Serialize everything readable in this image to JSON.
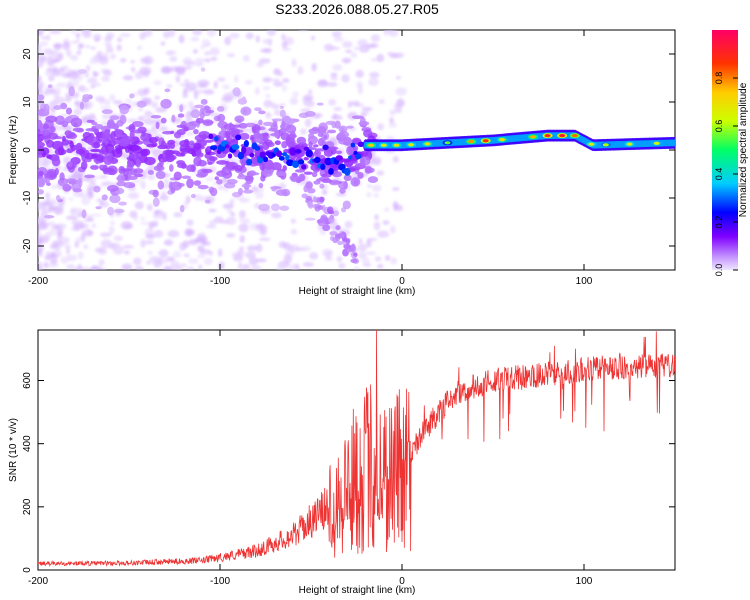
{
  "figure": {
    "title": "S233.2026.088.05.27.R05"
  },
  "chart_data": [
    {
      "type": "heatmap",
      "xlabel": "Height of straight line (km)",
      "ylabel": "Frequency (Hz)",
      "xlim": [
        -200,
        150
      ],
      "ylim": [
        -25,
        25
      ],
      "xticks": [
        -200,
        -100,
        0,
        100
      ],
      "yticks": [
        -20,
        -10,
        0,
        10,
        20
      ],
      "colorbar": {
        "label": "Normalized spectral amplitude",
        "range": [
          0,
          1
        ],
        "ticks": [
          0.0,
          0.2,
          0.4,
          0.6,
          0.8
        ],
        "tick_labels": [
          "0.0",
          "0.2",
          "0.4",
          "0.6",
          "0.8"
        ]
      },
      "description_points": {
        "ridge_frequency_hz": [
          {
            "x": -100,
            "y": 0
          },
          {
            "x": -60,
            "y": -1
          },
          {
            "x": -30,
            "y": -3
          },
          {
            "x": -20,
            "y": 1
          },
          {
            "x": 0,
            "y": 1
          },
          {
            "x": 50,
            "y": 2
          },
          {
            "x": 80,
            "y": 3
          },
          {
            "x": 95,
            "y": 3
          },
          {
            "x": 105,
            "y": 1
          },
          {
            "x": 150,
            "y": 1.5
          }
        ]
      }
    },
    {
      "type": "line",
      "xlabel": "Height of straight line (km)",
      "ylabel": "SNR (10 * v/v)",
      "xlim": [
        -200,
        150
      ],
      "ylim": [
        0,
        760
      ],
      "xticks": [
        -200,
        -100,
        0,
        100
      ],
      "yticks": [
        0,
        200,
        400,
        600
      ],
      "series": [
        {
          "name": "SNR",
          "color": "#ee3333",
          "envelope": [
            {
              "x": -200,
              "y": 20
            },
            {
              "x": -150,
              "y": 22
            },
            {
              "x": -110,
              "y": 30
            },
            {
              "x": -80,
              "y": 60
            },
            {
              "x": -60,
              "y": 110
            },
            {
              "x": -45,
              "y": 180
            },
            {
              "x": -30,
              "y": 260
            },
            {
              "x": -18,
              "y": 330
            },
            {
              "x": -10,
              "y": 300
            },
            {
              "x": 0,
              "y": 330
            },
            {
              "x": 10,
              "y": 420
            },
            {
              "x": 20,
              "y": 500
            },
            {
              "x": 30,
              "y": 560
            },
            {
              "x": 50,
              "y": 600
            },
            {
              "x": 80,
              "y": 620
            },
            {
              "x": 110,
              "y": 640
            },
            {
              "x": 150,
              "y": 650
            }
          ],
          "peak": {
            "x": -14,
            "y": 760
          }
        }
      ]
    }
  ],
  "colors": {
    "snr_line": "#ee3333",
    "colormap": [
      "#f0e6ff",
      "#c89cff",
      "#7f00ff",
      "#0000ff",
      "#00ccff",
      "#00ff66",
      "#ccff00",
      "#ffcc00",
      "#ff3300",
      "#ff0066"
    ]
  }
}
